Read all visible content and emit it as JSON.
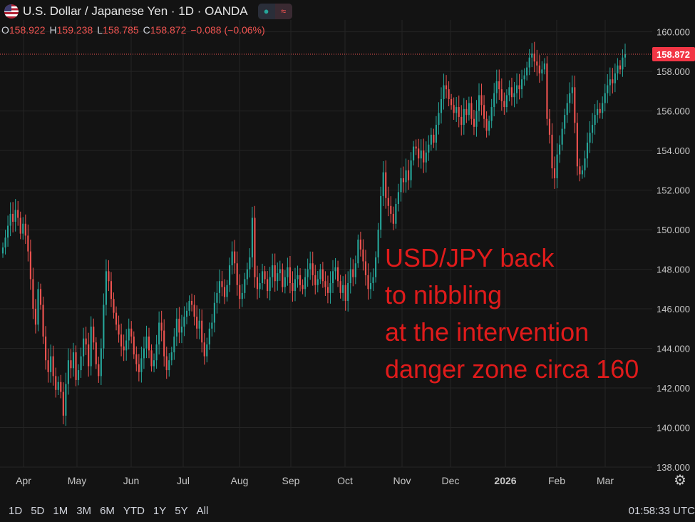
{
  "header": {
    "title": "U.S. Dollar / Japanese Yen · 1D · OANDA",
    "icons": [
      "us-flag-icon",
      "live-dot-icon",
      "wave-icon"
    ]
  },
  "ohlc": {
    "o_key": "O",
    "o": "158.922",
    "h_key": "H",
    "h": "159.238",
    "l_key": "L",
    "l": "158.785",
    "c_key": "C",
    "c": "158.872",
    "change": "−0.088 (−0.06%)"
  },
  "annotation": "USD/JPY back\nto nibbling\nat the intervention\ndanger zone circa 160",
  "toolbar": {
    "ranges": [
      "1D",
      "5D",
      "1M",
      "3M",
      "6M",
      "YTD",
      "1Y",
      "5Y",
      "All"
    ],
    "clock": "01:58:33 UTC"
  },
  "colors": {
    "up": "#26a69a",
    "down": "#ef5350",
    "annotation": "#e01b1b",
    "background": "#131313",
    "grid": "#242424",
    "price_label_bg": "#f23645"
  },
  "chart_data": {
    "type": "candlestick",
    "title": "U.S. Dollar / Japanese Yen · 1D · OANDA",
    "ylim": [
      138,
      160.6
    ],
    "y_ticks": [
      "160.000",
      "158.000",
      "156.000",
      "154.000",
      "152.000",
      "150.000",
      "148.000",
      "146.000",
      "144.000",
      "142.000",
      "140.000",
      "138.000"
    ],
    "x_ticks": [
      "Apr",
      "May",
      "Jun",
      "Jul",
      "Aug",
      "Sep",
      "Oct",
      "Nov",
      "Dec",
      "2026",
      "Feb",
      "Mar"
    ],
    "last_price": 158.872,
    "last_price_label": "158.872",
    "closes": [
      149.1,
      149.6,
      150.2,
      150.8,
      150.4,
      151.0,
      150.6,
      149.8,
      150.3,
      149.7,
      148.9,
      147.5,
      146.0,
      145.2,
      147.0,
      146.2,
      144.6,
      143.4,
      142.8,
      143.6,
      142.6,
      141.9,
      142.3,
      141.8,
      140.6,
      142.2,
      143.4,
      143.0,
      143.8,
      142.4,
      142.9,
      143.6,
      144.5,
      144.2,
      143.1,
      145.1,
      144.3,
      143.2,
      142.6,
      144.0,
      146.2,
      147.9,
      147.4,
      146.5,
      145.8,
      145.2,
      144.7,
      144.1,
      143.9,
      144.4,
      145.0,
      144.6,
      143.7,
      143.2,
      142.8,
      143.5,
      144.0,
      144.6,
      143.9,
      143.1,
      143.4,
      144.2,
      145.3,
      144.9,
      143.6,
      142.9,
      143.4,
      143.8,
      144.6,
      145.5,
      144.8,
      145.1,
      145.6,
      145.9,
      146.4,
      146.2,
      145.6,
      145.0,
      145.4,
      144.3,
      143.6,
      144.2,
      145.0,
      145.3,
      146.3,
      146.8,
      147.4,
      147.1,
      146.6,
      147.2,
      148.2,
      148.9,
      148.3,
      147.2,
      146.5,
      146.8,
      147.5,
      148.0,
      148.6,
      150.6,
      147.6,
      147.0,
      147.3,
      147.9,
      147.5,
      146.9,
      147.6,
      148.2,
      147.4,
      147.8,
      148.0,
      147.1,
      147.6,
      148.1,
      147.3,
      146.9,
      147.5,
      147.7,
      147.2,
      147.0,
      147.6,
      148.0,
      148.3,
      147.7,
      147.2,
      147.5,
      148.0,
      147.4,
      147.1,
      146.8,
      147.3,
      147.9,
      148.1,
      147.4,
      146.8,
      147.2,
      146.4,
      147.3,
      148.0,
      147.6,
      148.3,
      149.5,
      149.0,
      148.4,
      147.7,
      147.0,
      147.3,
      147.6,
      148.6,
      150.0,
      151.7,
      152.9,
      151.6,
      151.2,
      150.8,
      150.3,
      151.3,
      151.9,
      152.6,
      152.4,
      153.0,
      152.5,
      153.5,
      154.2,
      154.1,
      153.6,
      154.0,
      153.4,
      153.9,
      154.3,
      154.8,
      154.4,
      155.3,
      155.9,
      156.6,
      157.3,
      157.1,
      156.6,
      156.3,
      155.9,
      156.2,
      155.7,
      155.3,
      156.1,
      155.8,
      156.4,
      155.6,
      155.2,
      156.0,
      156.8,
      156.3,
      155.6,
      155.0,
      155.5,
      156.2,
      156.9,
      157.5,
      157.1,
      156.5,
      156.2,
      156.8,
      157.2,
      156.7,
      156.9,
      157.3,
      157.1,
      157.6,
      157.8,
      158.2,
      158.7,
      158.9,
      158.5,
      158.3,
      157.9,
      158.1,
      158.4,
      155.6,
      154.8,
      153.1,
      152.6,
      153.8,
      154.3,
      155.1,
      155.8,
      156.4,
      156.9,
      157.2,
      155.4,
      153.2,
      152.8,
      153.0,
      153.6,
      154.4,
      154.9,
      155.3,
      155.8,
      156.1,
      155.9,
      156.4,
      156.9,
      157.3,
      157.6,
      157.4,
      157.9,
      158.3,
      158.1,
      158.7,
      158.872
    ]
  }
}
